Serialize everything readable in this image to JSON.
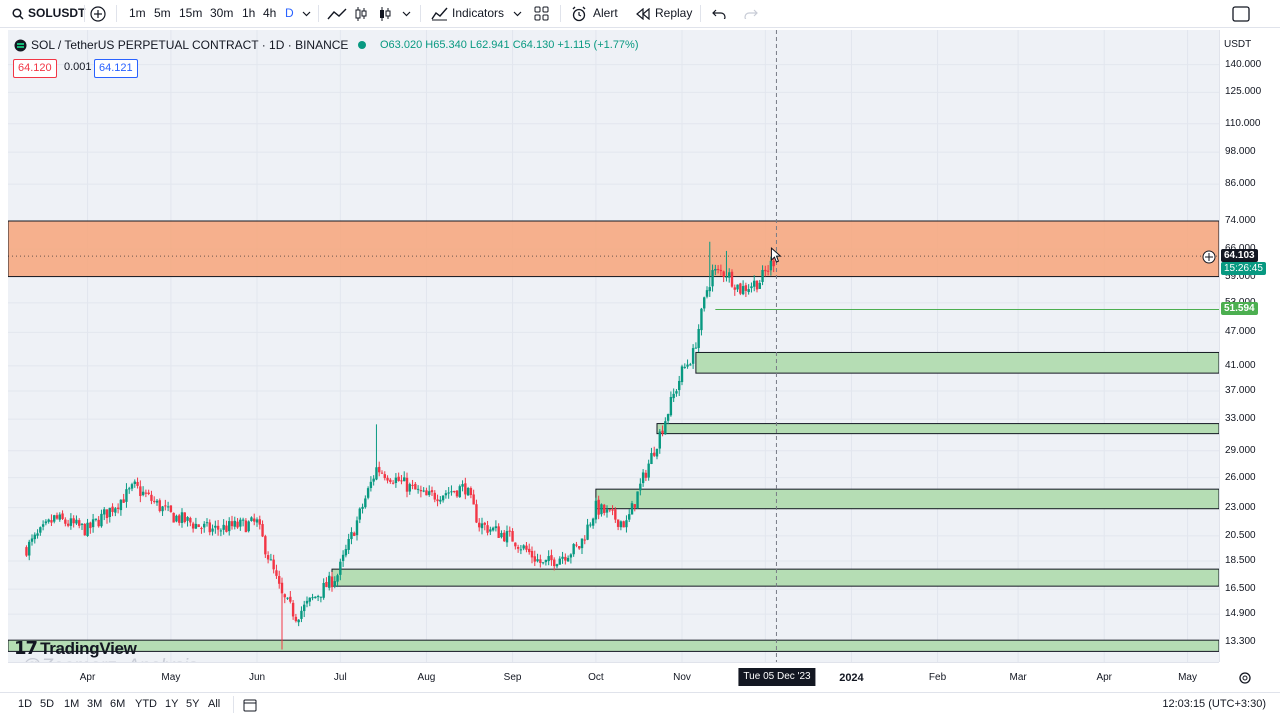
{
  "toolbar": {
    "symbol": "SOLUSDT",
    "intervals": [
      "1m",
      "5m",
      "15m",
      "30m",
      "1h",
      "4h",
      "D"
    ],
    "indicators_label": "Indicators",
    "alert_label": "Alert",
    "replay_label": "Replay"
  },
  "legend": {
    "title": "SOL / TetherUS PERPETUAL CONTRACT · 1D · BINANCE",
    "ohlc": "O63.020 H65.340 L62.941 C64.130 +1.115 (+1.77%)",
    "status_color": "#089981"
  },
  "price_boxes": {
    "bid": "64.120",
    "spread": "0.001",
    "ask": "64.121"
  },
  "watermark": "TradingView",
  "credit": "@Zoomarz_Analysis",
  "price_scale": {
    "currency": "USDT",
    "ticks": [
      "140.000",
      "125.000",
      "110.000",
      "98.000",
      "86.000",
      "74.000",
      "66.000",
      "59.000",
      "53.000",
      "47.000",
      "41.000",
      "37.000",
      "33.000",
      "29.000",
      "26.000",
      "23.000",
      "20.500",
      "18.500",
      "16.500",
      "14.900",
      "13.300"
    ],
    "last_price": "64.103",
    "countdown": "15:26:45",
    "level_price": "51.594"
  },
  "time_axis": {
    "ticks": [
      "Apr",
      "May",
      "Jun",
      "Jul",
      "Aug",
      "Sep",
      "Oct",
      "Nov",
      "2024",
      "Feb",
      "Mar",
      "Apr",
      "May"
    ],
    "cursor_label": "Tue 05 Dec '23"
  },
  "bottom": {
    "ranges": [
      "1D",
      "5D",
      "1M",
      "3M",
      "6M",
      "YTD",
      "1Y",
      "5Y",
      "All"
    ],
    "clock": "12:03:15 (UTC+3:30)"
  },
  "colors": {
    "up": "#089981",
    "down": "#f23645",
    "resistance_zone": "#f7a57a",
    "support_zone": "#b5ddb4"
  },
  "zones": {
    "resistance": [
      59.0,
      74.0
    ],
    "support": [
      [
        39.8,
        43.3
      ],
      [
        31.1,
        32.4
      ],
      [
        22.9,
        24.8
      ],
      [
        16.7,
        17.9
      ],
      [
        12.8,
        13.4
      ]
    ],
    "line_level": 51.594
  },
  "chart_data": {
    "type": "candlestick",
    "symbol": "SOL / TetherUS PERPETUAL CONTRACT",
    "interval": "1D",
    "scale": "log",
    "anchors": [
      {
        "date": "2023-03-10",
        "close": 19.5
      },
      {
        "date": "2023-03-20",
        "close": 22.0
      },
      {
        "date": "2023-04-01",
        "close": 21.0
      },
      {
        "date": "2023-04-18",
        "close": 25.0
      },
      {
        "date": "2023-05-01",
        "close": 22.3
      },
      {
        "date": "2023-05-15",
        "close": 21.0
      },
      {
        "date": "2023-06-01",
        "close": 21.6
      },
      {
        "date": "2023-06-10",
        "close": 16.0
      },
      {
        "date": "2023-06-15",
        "close": 14.8
      },
      {
        "date": "2023-06-30",
        "close": 17.5
      },
      {
        "date": "2023-07-14",
        "close": 27.0
      },
      {
        "date": "2023-07-20",
        "close": 26.0
      },
      {
        "date": "2023-08-01",
        "close": 24.0
      },
      {
        "date": "2023-08-15",
        "close": 25.0
      },
      {
        "date": "2023-08-20",
        "close": 21.5
      },
      {
        "date": "2023-09-01",
        "close": 20.3
      },
      {
        "date": "2023-09-12",
        "close": 18.2
      },
      {
        "date": "2023-09-25",
        "close": 19.6
      },
      {
        "date": "2023-10-01",
        "close": 23.0
      },
      {
        "date": "2023-10-12",
        "close": 21.5
      },
      {
        "date": "2023-10-20",
        "close": 27.5
      },
      {
        "date": "2023-10-25",
        "close": 32.0
      },
      {
        "date": "2023-11-01",
        "close": 40.0
      },
      {
        "date": "2023-11-05",
        "close": 43.0
      },
      {
        "date": "2023-11-10",
        "close": 56.0
      },
      {
        "date": "2023-11-12",
        "close": 60.0
      },
      {
        "date": "2023-11-17",
        "close": 60.0
      },
      {
        "date": "2023-11-22",
        "close": 56.0
      },
      {
        "date": "2023-11-29",
        "close": 58.0
      },
      {
        "date": "2023-12-05",
        "close": 64.13
      }
    ],
    "spikes": [
      {
        "date": "2023-06-10",
        "low": 12.9
      },
      {
        "date": "2023-07-14",
        "high": 32.3
      },
      {
        "date": "2023-11-11",
        "high": 68.0
      },
      {
        "date": "2023-11-17",
        "high": 65.5
      }
    ],
    "last_ohlc": {
      "open": 63.02,
      "high": 65.34,
      "low": 62.941,
      "close": 64.13
    },
    "change": "+1.115 (+1.77%)"
  }
}
